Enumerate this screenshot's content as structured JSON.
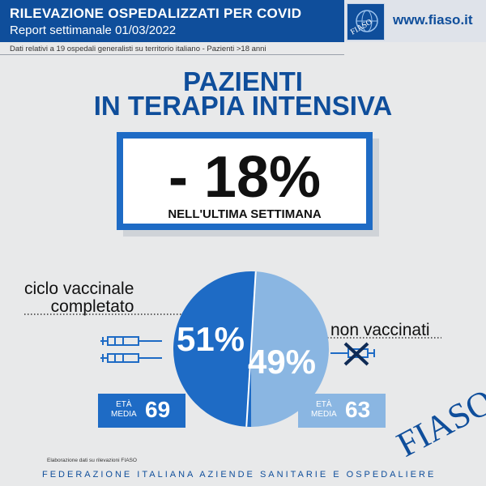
{
  "header": {
    "title": "RILEVAZIONE OSPEDALIZZATI PER COVID",
    "subtitle": "Report settimanale 01/03/2022",
    "logo_text": "FIASO",
    "url": "www.fiaso.it"
  },
  "context": "Dati relativi a 19 ospedali generalisti su territorio italiano - Pazienti >18 anni",
  "headline": {
    "line1": "PAZIENTI",
    "line2": "IN TERAPIA INTENSIVA"
  },
  "stat": {
    "value": "- 18%",
    "caption": "NELL'ULTIMA SETTIMANA"
  },
  "labels": {
    "vaccinated_line1": "ciclo vaccinale",
    "vaccinated_line2": "completato",
    "unvaccinated": "non vaccinati"
  },
  "age": {
    "vaccinated_label_1": "ETÀ",
    "vaccinated_label_2": "MEDIA",
    "vaccinated_value": "69",
    "unvaccinated_label_1": "ETÀ",
    "unvaccinated_label_2": "MEDIA",
    "unvaccinated_value": "63"
  },
  "source_note": "Elaborazione dati su rilevazioni FIASO",
  "footer": "FEDERAZIONE ITALIANA AZIENDE SANITARIE E OSPEDALIERE",
  "footer_logo": "FIASO",
  "colors": {
    "brand_blue": "#0f4e9b",
    "vaccinated": "#1e6bc5",
    "unvaccinated": "#8ab6e2"
  },
  "chart_data": {
    "type": "pie",
    "categories": [
      "ciclo vaccinale completato",
      "non vaccinati"
    ],
    "values": [
      51,
      49
    ],
    "value_labels": [
      "51%",
      "49%"
    ],
    "colors": [
      "#1e6bc5",
      "#8ab6e2"
    ]
  }
}
